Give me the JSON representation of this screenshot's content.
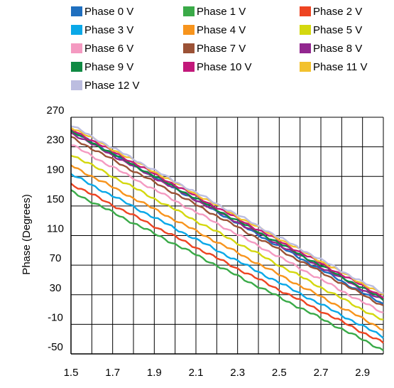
{
  "chart_data": {
    "type": "line",
    "title": "",
    "xlabel": "",
    "ylabel": "Phase (Degrees)",
    "xlim": [
      1.5,
      3.0
    ],
    "ylim": [
      -50,
      270
    ],
    "xticks": [
      "1.5",
      "1.7",
      "1.9",
      "2.1",
      "2.3",
      "2.5",
      "2.7",
      "2.9"
    ],
    "yticks": [
      "270",
      "230",
      "190",
      "150",
      "110",
      "70",
      "30",
      "-10",
      "-50"
    ],
    "grid": true,
    "legend_position": "top",
    "series": [
      {
        "name": "Phase 0 V",
        "color": "#1f6fbf",
        "x": [
          1.5,
          3.0
        ],
        "y": [
          252,
          17
        ]
      },
      {
        "name": "Phase 1 V",
        "color": "#3aaa48",
        "x": [
          1.5,
          3.0
        ],
        "y": [
          170,
          -45
        ]
      },
      {
        "name": "Phase 2 V",
        "color": "#ee4422",
        "x": [
          1.5,
          3.0
        ],
        "y": [
          180,
          -35
        ]
      },
      {
        "name": "Phase 3 V",
        "color": "#0aa8e8",
        "x": [
          1.5,
          3.0
        ],
        "y": [
          193,
          -27
        ]
      },
      {
        "name": "Phase 4 V",
        "color": "#f7941d",
        "x": [
          1.5,
          3.0
        ],
        "y": [
          205,
          -17
        ]
      },
      {
        "name": "Phase 5 V",
        "color": "#d4d80f",
        "x": [
          1.5,
          3.0
        ],
        "y": [
          220,
          -5
        ]
      },
      {
        "name": "Phase 6 V",
        "color": "#f49ac1",
        "x": [
          1.5,
          3.0
        ],
        "y": [
          233,
          5
        ]
      },
      {
        "name": "Phase 7 V",
        "color": "#9b5236",
        "x": [
          1.5,
          3.0
        ],
        "y": [
          243,
          15
        ]
      },
      {
        "name": "Phase 8 V",
        "color": "#92278f",
        "x": [
          1.5,
          3.0
        ],
        "y": [
          249,
          22
        ]
      },
      {
        "name": "Phase 9 V",
        "color": "#0f8a43",
        "x": [
          1.5,
          3.0
        ],
        "y": [
          251,
          24
        ]
      },
      {
        "name": "Phase 10 V",
        "color": "#c2187a",
        "x": [
          1.5,
          3.0
        ],
        "y": [
          254,
          27
        ]
      },
      {
        "name": "Phase 11 V",
        "color": "#f2c12e",
        "x": [
          1.5,
          3.0
        ],
        "y": [
          257,
          30
        ]
      },
      {
        "name": "Phase 12 V",
        "color": "#bcbde0",
        "x": [
          1.5,
          3.0
        ],
        "y": [
          259,
          32
        ]
      }
    ]
  }
}
